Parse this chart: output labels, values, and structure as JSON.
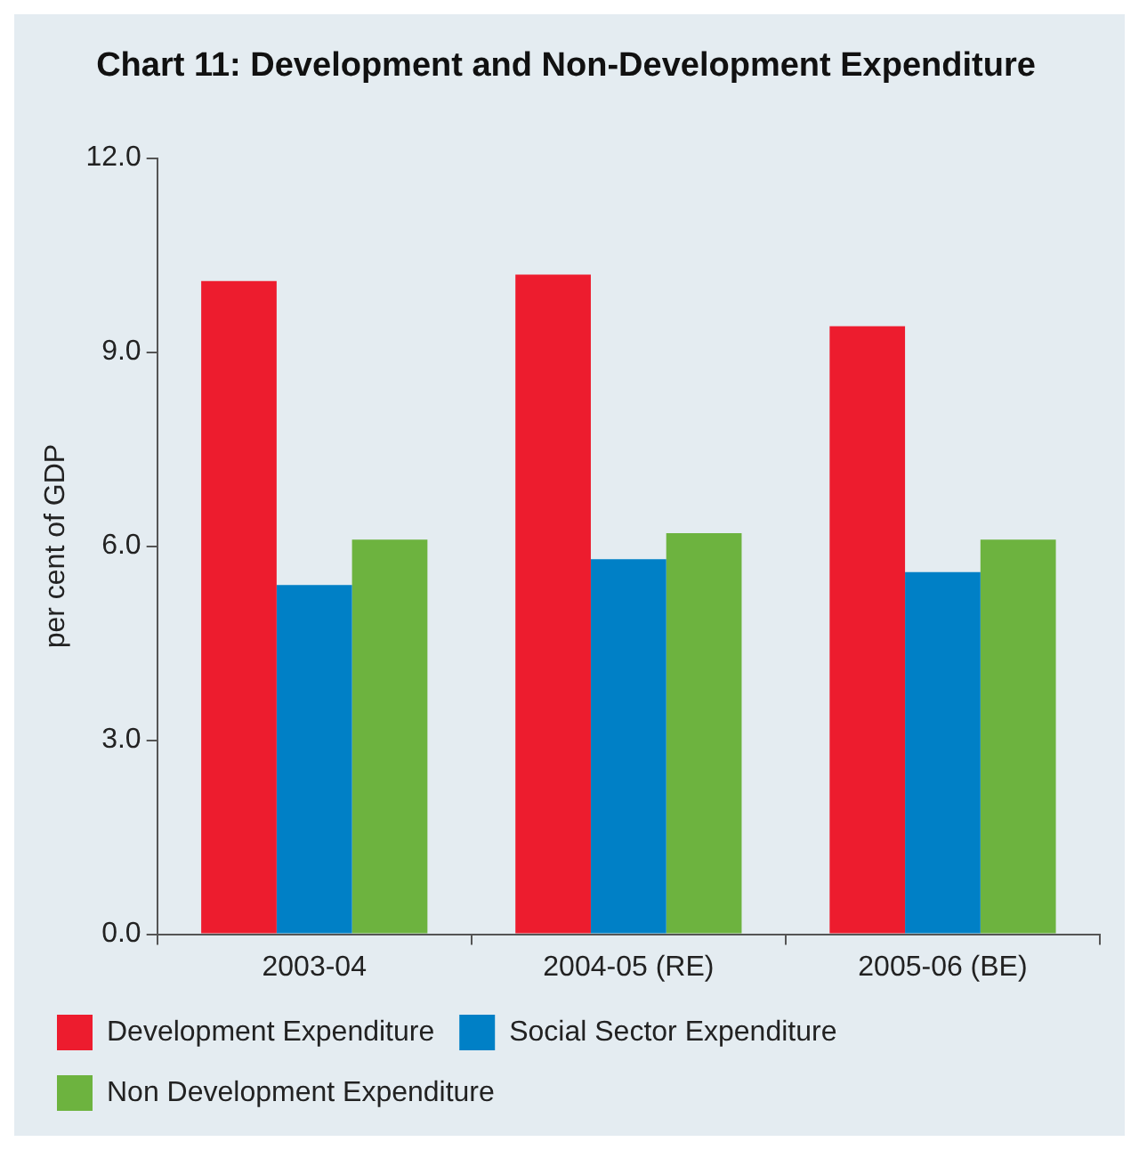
{
  "chart_data": {
    "type": "bar",
    "title": "Chart 11: Development and Non-Development Expenditure",
    "ylabel": "per cent of GDP",
    "categories": [
      "2003-04",
      "2004-05 (RE)",
      "2005-06 (BE)"
    ],
    "series": [
      {
        "name": "Development Expenditure",
        "color": "#ed1c2e",
        "values": [
          10.1,
          10.2,
          9.4
        ]
      },
      {
        "name": "Social Sector Expenditure",
        "color": "#0080c6",
        "values": [
          5.4,
          5.8,
          5.6
        ]
      },
      {
        "name": "Non Development Expenditure",
        "color": "#6db33f",
        "values": [
          6.1,
          6.2,
          6.1
        ]
      }
    ],
    "ylim": [
      0,
      12
    ],
    "yticks": [
      {
        "value": 0,
        "label": "0.0"
      },
      {
        "value": 3,
        "label": "3.0"
      },
      {
        "value": 6,
        "label": "6.0"
      },
      {
        "value": 9,
        "label": "9.0"
      },
      {
        "value": 12,
        "label": "12.0"
      }
    ],
    "grid": false,
    "legend": "bottom left"
  }
}
